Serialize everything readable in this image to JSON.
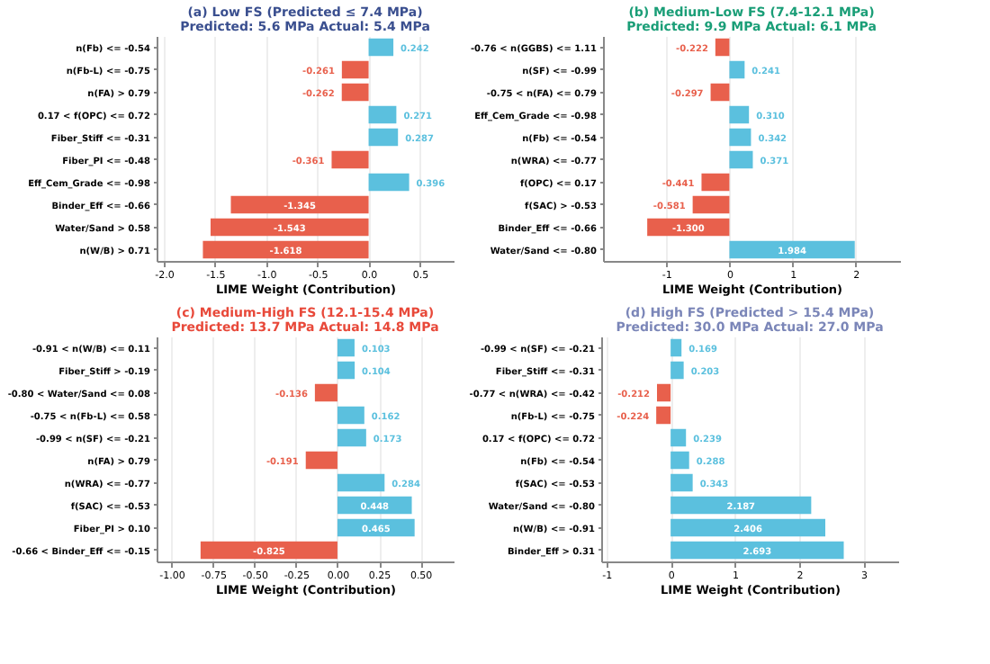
{
  "chart_data": [
    {
      "type": "bar",
      "orientation": "horizontal",
      "title": "(a) Low FS  (Predicted ≤ 7.4 MPa)",
      "subtitle": "Predicted: 5.6 MPa   Actual: 5.4 MPa",
      "xlabel": "LIME Weight (Contribution)",
      "categories": [
        "n(Fb) <= -0.54",
        "n(Fb-L) <= -0.75",
        "n(FA) > 0.79",
        "0.17 < f(OPC) <= 0.72",
        "Fiber_Stiff <= -0.31",
        "Fiber_PI <= -0.48",
        "Eff_Cem_Grade <= -0.98",
        "Binder_Eff <= -0.66",
        "Water/Sand > 0.58",
        "n(W/B) > 0.71"
      ],
      "values": [
        0.242,
        -0.261,
        -0.262,
        0.271,
        0.287,
        -0.361,
        0.396,
        -1.345,
        -1.543,
        -1.618
      ],
      "value_labels": [
        "0.242",
        "-0.261",
        "-0.262",
        "0.271",
        "0.287",
        "-0.361",
        "0.396",
        "-1.345",
        "-1.543",
        "-1.618"
      ],
      "colors": [
        "#5bc0de",
        "#e8604c",
        "#e8604c",
        "#5bc0de",
        "#5bc0de",
        "#e8604c",
        "#5bc0de",
        "#e8604c",
        "#e8604c",
        "#e8604c"
      ],
      "xlim": [
        -2.07,
        0.83
      ],
      "xticks": [
        {
          "value": -2,
          "label": "-2.0"
        },
        -1.5,
        {
          "value": -1,
          "label": "-1.0"
        },
        -0.5,
        {
          "value": 0,
          "label": "0.0"
        },
        0.5
      ],
      "grid": "x"
    },
    {
      "type": "bar",
      "orientation": "horizontal",
      "title": "(b) Medium-Low FS  (7.4-12.1 MPa)",
      "subtitle": "Predicted: 9.9 MPa   Actual: 6.1 MPa",
      "xlabel": "LIME Weight (Contribution)",
      "categories": [
        "-0.76 < n(GGBS) <= 1.11",
        "n(SF) <= -0.99",
        "-0.75 < n(FA) <= 0.79",
        "Eff_Cem_Grade <= -0.98",
        "n(Fb) <= -0.54",
        "n(WRA) <= -0.77",
        "f(OPC) <= 0.17",
        "f(SAC) > -0.53",
        "Binder_Eff <= -0.66",
        "Water/Sand <= -0.80"
      ],
      "values": [
        -0.222,
        0.241,
        -0.297,
        0.31,
        0.342,
        0.371,
        -0.441,
        -0.581,
        -1.3,
        1.984
      ],
      "value_labels": [
        "-0.222",
        "0.241",
        "-0.297",
        "0.310",
        "0.342",
        "0.371",
        "-0.441",
        "-0.581",
        "-1.300",
        "1.984"
      ],
      "colors": [
        "#e8604c",
        "#5bc0de",
        "#e8604c",
        "#5bc0de",
        "#5bc0de",
        "#5bc0de",
        "#e8604c",
        "#e8604c",
        "#e8604c",
        "#5bc0de"
      ],
      "xlim": [
        -2.0,
        2.7
      ],
      "xticks": [
        -1,
        0,
        1,
        2
      ],
      "grid": "x"
    },
    {
      "type": "bar",
      "orientation": "horizontal",
      "title": "(c) Medium-High FS  (12.1-15.4 MPa)",
      "subtitle": "Predicted: 13.7 MPa   Actual: 14.8 MPa",
      "xlabel": "LIME Weight (Contribution)",
      "categories": [
        "-0.91 < n(W/B) <= 0.11",
        "Fiber_Stiff > -0.19",
        "-0.80 < Water/Sand <= 0.08",
        "-0.75 < n(Fb-L) <= 0.58",
        "-0.99 < n(SF) <= -0.21",
        "n(FA) > 0.79",
        "n(WRA) <= -0.77",
        "f(SAC) <= -0.53",
        "Fiber_PI > 0.10",
        "-0.66 < Binder_Eff <= -0.15"
      ],
      "values": [
        0.103,
        0.104,
        -0.136,
        0.162,
        0.173,
        -0.191,
        0.284,
        0.448,
        0.465,
        -0.825
      ],
      "value_labels": [
        "0.103",
        "0.104",
        "-0.136",
        "0.162",
        "0.173",
        "-0.191",
        "0.284",
        "0.448",
        "0.465",
        "-0.825"
      ],
      "colors": [
        "#5bc0de",
        "#5bc0de",
        "#e8604c",
        "#5bc0de",
        "#5bc0de",
        "#e8604c",
        "#5bc0de",
        "#5bc0de",
        "#5bc0de",
        "#e8604c"
      ],
      "xlim": [
        -1.09,
        0.7
      ],
      "xticks": [
        {
          "value": -1,
          "label": "-1.00"
        },
        -0.75,
        {
          "value": -0.5,
          "label": "-0.50"
        },
        -0.25,
        {
          "value": 0,
          "label": "0.00"
        },
        0.25,
        {
          "value": 0.5,
          "label": "0.50"
        }
      ],
      "grid": "x"
    },
    {
      "type": "bar",
      "orientation": "horizontal",
      "title": "(d) High FS  (Predicted > 15.4 MPa)",
      "subtitle": "Predicted: 30.0 MPa   Actual: 27.0 MPa",
      "xlabel": "LIME Weight (Contribution)",
      "categories": [
        "-0.99 < n(SF) <= -0.21",
        "Fiber_Stiff <= -0.31",
        "-0.77 < n(WRA) <= -0.42",
        "n(Fb-L) <= -0.75",
        "0.17 < f(OPC) <= 0.72",
        "n(Fb) <= -0.54",
        "f(SAC) <= -0.53",
        "Water/Sand <= -0.80",
        "n(W/B) <= -0.91",
        "Binder_Eff > 0.31"
      ],
      "values": [
        0.169,
        0.203,
        -0.212,
        -0.224,
        0.239,
        0.288,
        0.343,
        2.187,
        2.406,
        2.693
      ],
      "value_labels": [
        "0.169",
        "0.203",
        "-0.212",
        "-0.224",
        "0.239",
        "0.288",
        "0.343",
        "2.187",
        "2.406",
        "2.693"
      ],
      "colors": [
        "#5bc0de",
        "#5bc0de",
        "#e8604c",
        "#e8604c",
        "#5bc0de",
        "#5bc0de",
        "#5bc0de",
        "#5bc0de",
        "#5bc0de",
        "#5bc0de"
      ],
      "xlim": [
        -1.08,
        3.54
      ],
      "xticks": [
        -1,
        0,
        1,
        2,
        3
      ],
      "grid": "x"
    }
  ]
}
